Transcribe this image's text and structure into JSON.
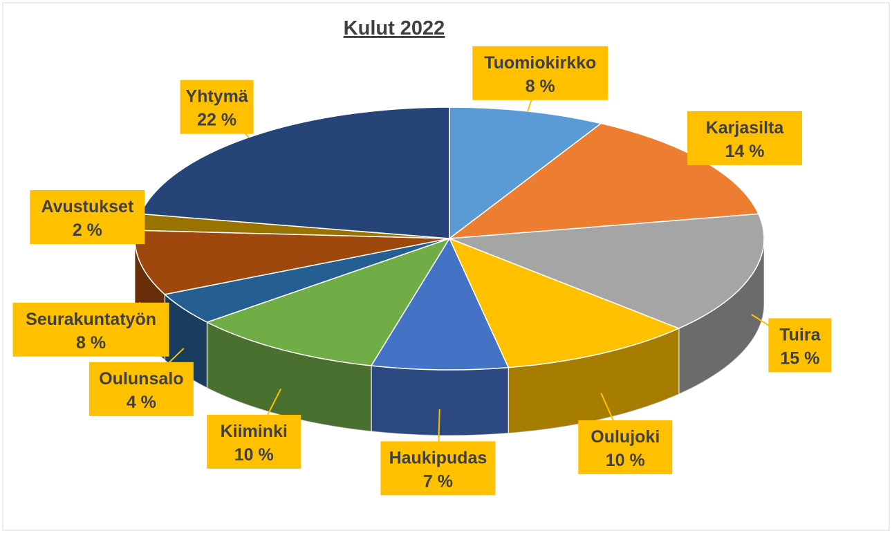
{
  "chart_data": {
    "type": "pie",
    "title": "Kulut 2022",
    "categories": [
      "Tuomiokirkko",
      "Karjasilta",
      "Tuira",
      "Oulujoki",
      "Haukipudas",
      "Kiiminki",
      "Oulunsalo",
      "Seurakuntatyön",
      "Avustukset",
      "Yhtymä"
    ],
    "values": [
      8,
      14,
      15,
      10,
      7,
      10,
      4,
      8,
      2,
      22
    ],
    "value_labels": [
      "8 %",
      "14 %",
      "15 %",
      "10 %",
      "7 %",
      "10 %",
      "4 %",
      "8 %",
      "2 %",
      "22 %"
    ],
    "colors": [
      "#5b9bd5",
      "#ed7d31",
      "#a5a5a5",
      "#ffc000",
      "#4472c4",
      "#70ad47",
      "#255e91",
      "#9e480e",
      "#997300",
      "#264478"
    ]
  }
}
